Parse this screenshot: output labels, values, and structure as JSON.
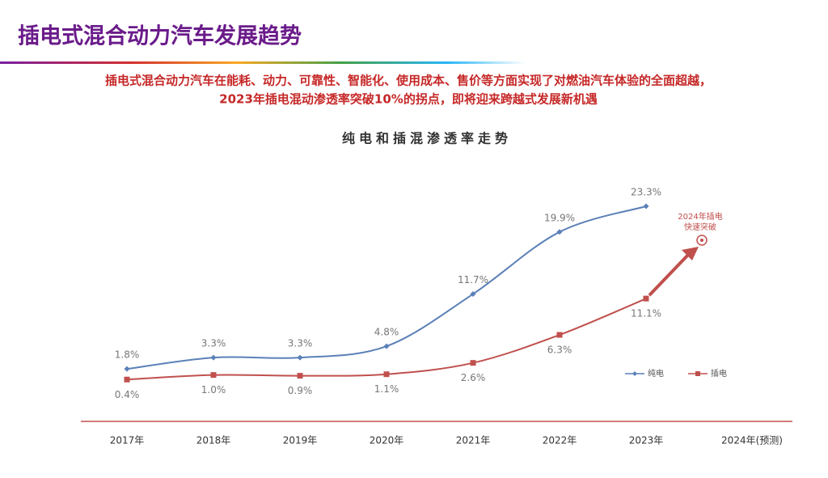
{
  "header": {
    "title": "插电式混合动力汽车发展趋势",
    "subtitle": [
      "插电式混合动力汽车在能耗、动力、可靠性、智能化、使用成本、售价等方面实现了对燃油汽车体验的全面超越，",
      "2023年插电混动渗透率突破10%的拐点，即将迎来跨越式发展新机遇"
    ]
  },
  "chart_data": {
    "type": "line",
    "title": "纯电和插混渗透率走势",
    "categories": [
      "2017年",
      "2018年",
      "2019年",
      "2020年",
      "2021年",
      "2022年",
      "2023年",
      "2024年(预测)"
    ],
    "series": [
      {
        "name": "纯电",
        "color": "#5b80b8",
        "marker": "diamond",
        "values": [
          1.8,
          3.3,
          3.3,
          4.8,
          11.7,
          19.9,
          23.3,
          null
        ],
        "value_labels": [
          "1.8%",
          "3.3%",
          "3.3%",
          "4.8%",
          "11.7%",
          "19.9%",
          "23.3%",
          null
        ]
      },
      {
        "name": "插电",
        "color": "#c0504d",
        "marker": "square",
        "values": [
          0.4,
          1.0,
          0.9,
          1.1,
          2.6,
          6.3,
          11.1,
          null
        ],
        "value_labels": [
          "0.4%",
          "1.0%",
          "0.9%",
          "1.1%",
          "2.6%",
          "6.3%",
          "11.1%",
          null
        ]
      }
    ],
    "annotation": [
      "2024年插电",
      "快速突破"
    ],
    "legend": "right"
  }
}
